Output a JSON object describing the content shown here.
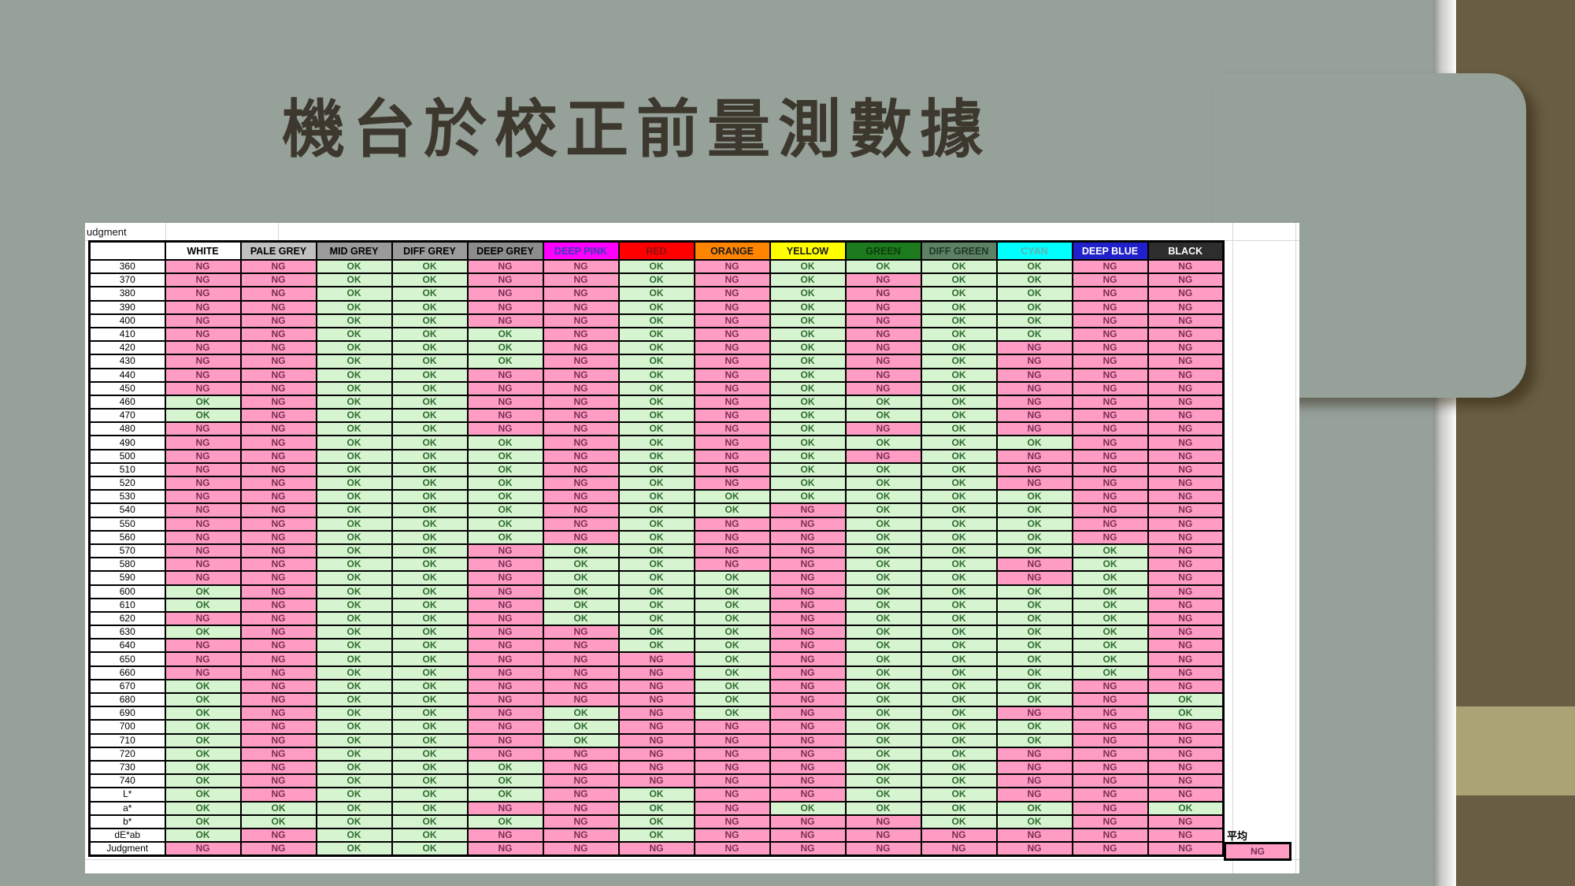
{
  "slide_title": "機台於校正前量測數據",
  "theme": {
    "slide_bg": "#96A19A",
    "title_color": "#3D382E",
    "side_band_brown": "#695E43",
    "side_band_khaki": "#A9A376",
    "divider_strip_white": "#FDFDFC",
    "ok_bg": "#D6F4D0",
    "ok_fg": "#2F6B2F",
    "ng_bg": "#FF9CC3",
    "ng_fg": "#7B2D52",
    "grid_border": "#000000"
  },
  "sheet": {
    "corner_label": "udgment",
    "columns": [
      {
        "label": "WHITE",
        "bg": "#FFFFFF",
        "fg": "#000000"
      },
      {
        "label": "PALE GREY",
        "bg": "#C0C0C0",
        "fg": "#000000"
      },
      {
        "label": "MID GREY",
        "bg": "#9B9B9B",
        "fg": "#000000"
      },
      {
        "label": "DIFF GREY",
        "bg": "#9B9B9B",
        "fg": "#000000"
      },
      {
        "label": "DEEP GREY",
        "bg": "#8C8C8C",
        "fg": "#000000"
      },
      {
        "label": "DEEP PINK",
        "bg": "#FF00FF",
        "fg": "#3C3CB4"
      },
      {
        "label": "RED",
        "bg": "#FF0000",
        "fg": "#8F1010"
      },
      {
        "label": "ORANGE",
        "bg": "#FF8400",
        "fg": "#1A1A1A"
      },
      {
        "label": "YELLOW",
        "bg": "#FFFF00",
        "fg": "#1A1A1A"
      },
      {
        "label": "GREEN",
        "bg": "#1E7A1E",
        "fg": "#0A3D0A"
      },
      {
        "label": "DIFF GREEN",
        "bg": "#5E8165",
        "fg": "#1C3A22"
      },
      {
        "label": "CYAN",
        "bg": "#00FFFF",
        "fg": "#62B0B0"
      },
      {
        "label": "DEEP BLUE",
        "bg": "#2121CC",
        "fg": "#FFFFFF"
      },
      {
        "label": "BLACK",
        "bg": "#2D2D2D",
        "fg": "#FFFFFF"
      }
    ],
    "rows": [
      {
        "label": "360",
        "values": [
          "NG",
          "NG",
          "OK",
          "OK",
          "NG",
          "NG",
          "OK",
          "NG",
          "OK",
          "OK",
          "OK",
          "OK",
          "NG",
          "NG"
        ]
      },
      {
        "label": "370",
        "values": [
          "NG",
          "NG",
          "OK",
          "OK",
          "NG",
          "NG",
          "OK",
          "NG",
          "OK",
          "NG",
          "OK",
          "OK",
          "NG",
          "NG"
        ]
      },
      {
        "label": "380",
        "values": [
          "NG",
          "NG",
          "OK",
          "OK",
          "NG",
          "NG",
          "OK",
          "NG",
          "OK",
          "NG",
          "OK",
          "OK",
          "NG",
          "NG"
        ]
      },
      {
        "label": "390",
        "values": [
          "NG",
          "NG",
          "OK",
          "OK",
          "NG",
          "NG",
          "OK",
          "NG",
          "OK",
          "NG",
          "OK",
          "OK",
          "NG",
          "NG"
        ]
      },
      {
        "label": "400",
        "values": [
          "NG",
          "NG",
          "OK",
          "OK",
          "NG",
          "NG",
          "OK",
          "NG",
          "OK",
          "NG",
          "OK",
          "OK",
          "NG",
          "NG"
        ]
      },
      {
        "label": "410",
        "values": [
          "NG",
          "NG",
          "OK",
          "OK",
          "OK",
          "NG",
          "OK",
          "NG",
          "OK",
          "NG",
          "OK",
          "OK",
          "NG",
          "NG"
        ]
      },
      {
        "label": "420",
        "values": [
          "NG",
          "NG",
          "OK",
          "OK",
          "OK",
          "NG",
          "OK",
          "NG",
          "OK",
          "NG",
          "OK",
          "NG",
          "NG",
          "NG"
        ]
      },
      {
        "label": "430",
        "values": [
          "NG",
          "NG",
          "OK",
          "OK",
          "OK",
          "NG",
          "OK",
          "NG",
          "OK",
          "NG",
          "OK",
          "NG",
          "NG",
          "NG"
        ]
      },
      {
        "label": "440",
        "values": [
          "NG",
          "NG",
          "OK",
          "OK",
          "NG",
          "NG",
          "OK",
          "NG",
          "OK",
          "NG",
          "OK",
          "NG",
          "NG",
          "NG"
        ]
      },
      {
        "label": "450",
        "values": [
          "NG",
          "NG",
          "OK",
          "OK",
          "NG",
          "NG",
          "OK",
          "NG",
          "OK",
          "NG",
          "OK",
          "NG",
          "NG",
          "NG"
        ]
      },
      {
        "label": "460",
        "values": [
          "OK",
          "NG",
          "OK",
          "OK",
          "NG",
          "NG",
          "OK",
          "NG",
          "OK",
          "OK",
          "OK",
          "NG",
          "NG",
          "NG"
        ]
      },
      {
        "label": "470",
        "values": [
          "OK",
          "NG",
          "OK",
          "OK",
          "NG",
          "NG",
          "OK",
          "NG",
          "OK",
          "OK",
          "OK",
          "NG",
          "NG",
          "NG"
        ]
      },
      {
        "label": "480",
        "values": [
          "NG",
          "NG",
          "OK",
          "OK",
          "NG",
          "NG",
          "OK",
          "NG",
          "OK",
          "NG",
          "OK",
          "NG",
          "NG",
          "NG"
        ]
      },
      {
        "label": "490",
        "values": [
          "NG",
          "NG",
          "OK",
          "OK",
          "OK",
          "NG",
          "OK",
          "NG",
          "OK",
          "OK",
          "OK",
          "OK",
          "NG",
          "NG"
        ]
      },
      {
        "label": "500",
        "values": [
          "NG",
          "NG",
          "OK",
          "OK",
          "OK",
          "NG",
          "OK",
          "NG",
          "OK",
          "NG",
          "OK",
          "NG",
          "NG",
          "NG"
        ]
      },
      {
        "label": "510",
        "values": [
          "NG",
          "NG",
          "OK",
          "OK",
          "OK",
          "NG",
          "OK",
          "NG",
          "OK",
          "OK",
          "OK",
          "NG",
          "NG",
          "NG"
        ]
      },
      {
        "label": "520",
        "values": [
          "NG",
          "NG",
          "OK",
          "OK",
          "OK",
          "NG",
          "OK",
          "NG",
          "OK",
          "OK",
          "OK",
          "NG",
          "NG",
          "NG"
        ]
      },
      {
        "label": "530",
        "values": [
          "NG",
          "NG",
          "OK",
          "OK",
          "OK",
          "NG",
          "OK",
          "OK",
          "OK",
          "OK",
          "OK",
          "OK",
          "NG",
          "NG"
        ]
      },
      {
        "label": "540",
        "values": [
          "NG",
          "NG",
          "OK",
          "OK",
          "OK",
          "NG",
          "OK",
          "OK",
          "NG",
          "OK",
          "OK",
          "OK",
          "NG",
          "NG"
        ]
      },
      {
        "label": "550",
        "values": [
          "NG",
          "NG",
          "OK",
          "OK",
          "OK",
          "NG",
          "OK",
          "NG",
          "NG",
          "OK",
          "OK",
          "OK",
          "NG",
          "NG"
        ]
      },
      {
        "label": "560",
        "values": [
          "NG",
          "NG",
          "OK",
          "OK",
          "OK",
          "NG",
          "OK",
          "NG",
          "NG",
          "OK",
          "OK",
          "OK",
          "NG",
          "NG"
        ]
      },
      {
        "label": "570",
        "values": [
          "NG",
          "NG",
          "OK",
          "OK",
          "NG",
          "OK",
          "OK",
          "NG",
          "NG",
          "OK",
          "OK",
          "OK",
          "OK",
          "NG"
        ]
      },
      {
        "label": "580",
        "values": [
          "NG",
          "NG",
          "OK",
          "OK",
          "NG",
          "OK",
          "OK",
          "NG",
          "NG",
          "OK",
          "OK",
          "NG",
          "OK",
          "NG"
        ]
      },
      {
        "label": "590",
        "values": [
          "NG",
          "NG",
          "OK",
          "OK",
          "NG",
          "OK",
          "OK",
          "OK",
          "NG",
          "OK",
          "OK",
          "NG",
          "OK",
          "NG"
        ]
      },
      {
        "label": "600",
        "values": [
          "OK",
          "NG",
          "OK",
          "OK",
          "NG",
          "OK",
          "OK",
          "OK",
          "NG",
          "OK",
          "OK",
          "OK",
          "OK",
          "NG"
        ]
      },
      {
        "label": "610",
        "values": [
          "OK",
          "NG",
          "OK",
          "OK",
          "NG",
          "OK",
          "OK",
          "OK",
          "NG",
          "OK",
          "OK",
          "OK",
          "OK",
          "NG"
        ]
      },
      {
        "label": "620",
        "values": [
          "NG",
          "NG",
          "OK",
          "OK",
          "NG",
          "OK",
          "OK",
          "OK",
          "NG",
          "OK",
          "OK",
          "OK",
          "OK",
          "NG"
        ]
      },
      {
        "label": "630",
        "values": [
          "OK",
          "NG",
          "OK",
          "OK",
          "NG",
          "NG",
          "OK",
          "OK",
          "NG",
          "OK",
          "OK",
          "OK",
          "OK",
          "NG"
        ]
      },
      {
        "label": "640",
        "values": [
          "NG",
          "NG",
          "OK",
          "OK",
          "NG",
          "NG",
          "OK",
          "OK",
          "NG",
          "OK",
          "OK",
          "OK",
          "OK",
          "NG"
        ]
      },
      {
        "label": "650",
        "values": [
          "NG",
          "NG",
          "OK",
          "OK",
          "NG",
          "NG",
          "NG",
          "OK",
          "NG",
          "OK",
          "OK",
          "OK",
          "OK",
          "NG"
        ]
      },
      {
        "label": "660",
        "values": [
          "NG",
          "NG",
          "OK",
          "OK",
          "NG",
          "NG",
          "NG",
          "OK",
          "NG",
          "OK",
          "OK",
          "OK",
          "OK",
          "NG"
        ]
      },
      {
        "label": "670",
        "values": [
          "OK",
          "NG",
          "OK",
          "OK",
          "NG",
          "NG",
          "NG",
          "OK",
          "NG",
          "OK",
          "OK",
          "OK",
          "NG",
          "NG"
        ]
      },
      {
        "label": "680",
        "values": [
          "OK",
          "NG",
          "OK",
          "OK",
          "NG",
          "NG",
          "NG",
          "OK",
          "NG",
          "OK",
          "OK",
          "OK",
          "NG",
          "OK"
        ]
      },
      {
        "label": "690",
        "values": [
          "OK",
          "NG",
          "OK",
          "OK",
          "NG",
          "OK",
          "NG",
          "OK",
          "NG",
          "OK",
          "OK",
          "NG",
          "NG",
          "OK"
        ]
      },
      {
        "label": "700",
        "values": [
          "OK",
          "NG",
          "OK",
          "OK",
          "NG",
          "OK",
          "NG",
          "NG",
          "NG",
          "OK",
          "OK",
          "OK",
          "NG",
          "NG"
        ]
      },
      {
        "label": "710",
        "values": [
          "OK",
          "NG",
          "OK",
          "OK",
          "NG",
          "OK",
          "NG",
          "NG",
          "NG",
          "OK",
          "OK",
          "OK",
          "NG",
          "NG"
        ]
      },
      {
        "label": "720",
        "values": [
          "OK",
          "NG",
          "OK",
          "OK",
          "NG",
          "NG",
          "NG",
          "NG",
          "NG",
          "OK",
          "OK",
          "NG",
          "NG",
          "NG"
        ]
      },
      {
        "label": "730",
        "values": [
          "OK",
          "NG",
          "OK",
          "OK",
          "OK",
          "NG",
          "NG",
          "NG",
          "NG",
          "OK",
          "OK",
          "NG",
          "NG",
          "NG"
        ]
      },
      {
        "label": "740",
        "values": [
          "OK",
          "NG",
          "OK",
          "OK",
          "OK",
          "NG",
          "NG",
          "NG",
          "NG",
          "OK",
          "OK",
          "NG",
          "NG",
          "NG"
        ]
      },
      {
        "label": "L*",
        "values": [
          "OK",
          "NG",
          "OK",
          "OK",
          "OK",
          "NG",
          "OK",
          "NG",
          "NG",
          "OK",
          "OK",
          "NG",
          "NG",
          "NG"
        ]
      },
      {
        "label": "a*",
        "values": [
          "OK",
          "OK",
          "OK",
          "OK",
          "NG",
          "NG",
          "OK",
          "NG",
          "OK",
          "OK",
          "OK",
          "OK",
          "NG",
          "OK"
        ]
      },
      {
        "label": "b*",
        "values": [
          "OK",
          "OK",
          "OK",
          "OK",
          "OK",
          "NG",
          "OK",
          "NG",
          "NG",
          "NG",
          "OK",
          "OK",
          "NG",
          "NG"
        ]
      },
      {
        "label": "dE*ab",
        "values": [
          "OK",
          "NG",
          "OK",
          "OK",
          "NG",
          "NG",
          "OK",
          "NG",
          "NG",
          "NG",
          "NG",
          "NG",
          "NG",
          "NG"
        ]
      },
      {
        "label": "Judgment",
        "values": [
          "NG",
          "NG",
          "OK",
          "OK",
          "NG",
          "NG",
          "NG",
          "NG",
          "NG",
          "NG",
          "NG",
          "NG",
          "NG",
          "NG"
        ]
      }
    ],
    "summary": {
      "label": "平均",
      "value": "NG"
    }
  }
}
